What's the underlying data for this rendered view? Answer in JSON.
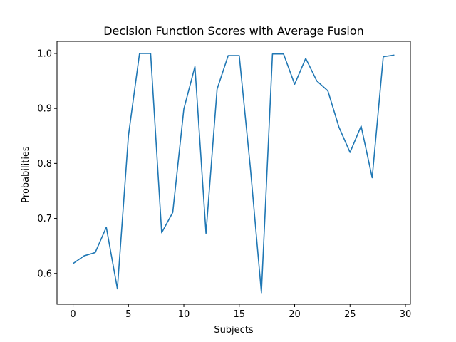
{
  "chart_data": {
    "type": "line",
    "title": "Decision Function Scores with Average Fusion",
    "xlabel": "Subjects",
    "ylabel": "Probabilities",
    "xlim": [
      -1.45,
      30.45
    ],
    "ylim": [
      0.544,
      1.022
    ],
    "xticks": [
      0,
      5,
      10,
      15,
      20,
      25,
      30
    ],
    "yticks": [
      0.6,
      0.7,
      0.8,
      0.9,
      1.0
    ],
    "xtick_labels": [
      "0",
      "5",
      "10",
      "15",
      "20",
      "25",
      "30"
    ],
    "ytick_labels": [
      "0.6",
      "0.7",
      "0.8",
      "0.9",
      "1.0"
    ],
    "grid": false,
    "legend": false,
    "series": [
      {
        "color": "#1f77b4",
        "x": [
          0,
          1,
          2,
          3,
          4,
          5,
          6,
          7,
          8,
          9,
          10,
          11,
          12,
          13,
          14,
          15,
          16,
          17,
          18,
          19,
          20,
          21,
          22,
          23,
          24,
          25,
          26,
          27,
          28,
          29
        ],
        "values": [
          0.618,
          0.632,
          0.638,
          0.684,
          0.572,
          0.851,
          1.0,
          1.0,
          0.674,
          0.711,
          0.899,
          0.976,
          0.673,
          0.935,
          0.996,
          0.996,
          0.793,
          0.565,
          0.999,
          0.999,
          0.944,
          0.991,
          0.95,
          0.932,
          0.866,
          0.82,
          0.868,
          0.774,
          0.994,
          0.997
        ]
      }
    ]
  }
}
